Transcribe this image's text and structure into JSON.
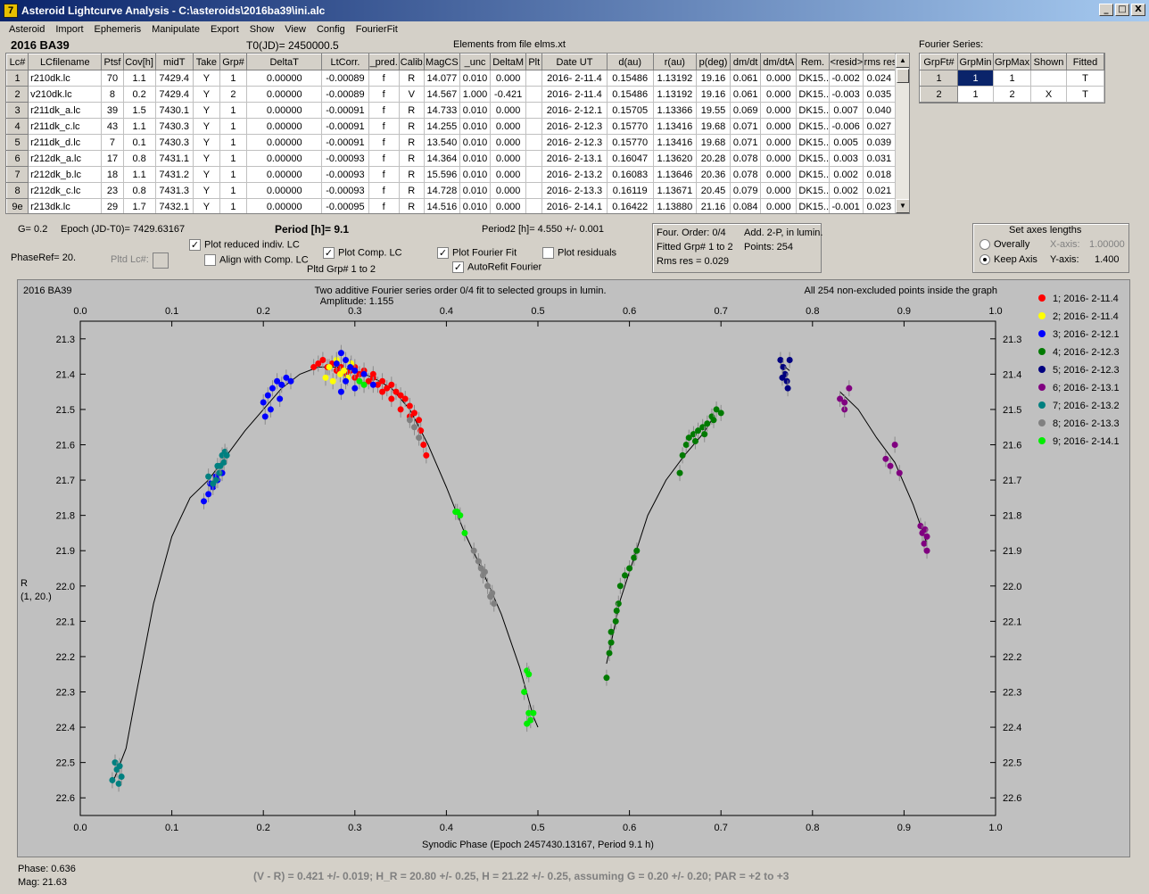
{
  "window": {
    "title": "Asteroid Lightcurve Analysis - C:\\asteroids\\2016ba39\\ini.alc",
    "app_icon": "7",
    "min": "_",
    "max": "□",
    "close": "X"
  },
  "menu": [
    "Asteroid",
    "Import",
    "Ephemeris",
    "Manipulate",
    "Export",
    "Show",
    "View",
    "Config",
    "FourierFit"
  ],
  "header": {
    "object": "2016 BA39",
    "t0": "T0(JD)= 2450000.5",
    "elements": "Elements from file elms.xt",
    "fourier_label": "Fourier Series:"
  },
  "lc_table": {
    "columns": [
      "Lc#",
      "LCfilename",
      "Ptsf",
      "Cov[h]",
      "midT",
      "Take",
      "Grp#",
      "DeltaT",
      "LtCorr.",
      "_pred.",
      "Calib.",
      "MagCS",
      "_unc",
      "DeltaM",
      "Plt",
      "Date UT",
      "d(au)",
      "r(au)",
      "p(deg)",
      "dm/dt",
      "dm/dtA",
      "Rem.",
      "<resid>",
      "rms res"
    ],
    "rows": [
      [
        "1",
        "r210dk.lc",
        "70",
        "1.1",
        "7429.4",
        "Y",
        "1",
        "0.00000",
        "-0.00089",
        "f",
        "R",
        "14.077",
        "0.010",
        "0.000",
        "",
        "2016- 2-11.4",
        "0.15486",
        "1.13192",
        "19.16",
        "0.061",
        "0.000",
        "DK15...",
        "-0.002",
        "0.024"
      ],
      [
        "2",
        "v210dk.lc",
        "8",
        "0.2",
        "7429.4",
        "Y",
        "2",
        "0.00000",
        "-0.00089",
        "f",
        "V",
        "14.567",
        "1.000",
        "-0.421",
        "",
        "2016- 2-11.4",
        "0.15486",
        "1.13192",
        "19.16",
        "0.061",
        "0.000",
        "DK15...",
        "-0.003",
        "0.035"
      ],
      [
        "3",
        "r211dk_a.lc",
        "39",
        "1.5",
        "7430.1",
        "Y",
        "1",
        "0.00000",
        "-0.00091",
        "f",
        "R",
        "14.733",
        "0.010",
        "0.000",
        "",
        "2016- 2-12.1",
        "0.15705",
        "1.13366",
        "19.55",
        "0.069",
        "0.000",
        "DK15...",
        "0.007",
        "0.040"
      ],
      [
        "4",
        "r211dk_c.lc",
        "43",
        "1.1",
        "7430.3",
        "Y",
        "1",
        "0.00000",
        "-0.00091",
        "f",
        "R",
        "14.255",
        "0.010",
        "0.000",
        "",
        "2016- 2-12.3",
        "0.15770",
        "1.13416",
        "19.68",
        "0.071",
        "0.000",
        "DK15...",
        "-0.006",
        "0.027"
      ],
      [
        "5",
        "r211dk_d.lc",
        "7",
        "0.1",
        "7430.3",
        "Y",
        "1",
        "0.00000",
        "-0.00091",
        "f",
        "R",
        "13.540",
        "0.010",
        "0.000",
        "",
        "2016- 2-12.3",
        "0.15770",
        "1.13416",
        "19.68",
        "0.071",
        "0.000",
        "DK15...",
        "0.005",
        "0.039"
      ],
      [
        "6",
        "r212dk_a.lc",
        "17",
        "0.8",
        "7431.1",
        "Y",
        "1",
        "0.00000",
        "-0.00093",
        "f",
        "R",
        "14.364",
        "0.010",
        "0.000",
        "",
        "2016- 2-13.1",
        "0.16047",
        "1.13620",
        "20.28",
        "0.078",
        "0.000",
        "DK15...",
        "0.003",
        "0.031"
      ],
      [
        "7",
        "r212dk_b.lc",
        "18",
        "1.1",
        "7431.2",
        "Y",
        "1",
        "0.00000",
        "-0.00093",
        "f",
        "R",
        "15.596",
        "0.010",
        "0.000",
        "",
        "2016- 2-13.2",
        "0.16083",
        "1.13646",
        "20.36",
        "0.078",
        "0.000",
        "DK15...",
        "0.002",
        "0.018"
      ],
      [
        "8",
        "r212dk_c.lc",
        "23",
        "0.8",
        "7431.3",
        "Y",
        "1",
        "0.00000",
        "-0.00093",
        "f",
        "R",
        "14.728",
        "0.010",
        "0.000",
        "",
        "2016- 2-13.3",
        "0.16119",
        "1.13671",
        "20.45",
        "0.079",
        "0.000",
        "DK15...",
        "0.002",
        "0.021"
      ],
      [
        "9e",
        "r213dk.lc",
        "29",
        "1.7",
        "7432.1",
        "Y",
        "1",
        "0.00000",
        "-0.00095",
        "f",
        "R",
        "14.516",
        "0.010",
        "0.000",
        "",
        "2016- 2-14.1",
        "0.16422",
        "1.13880",
        "21.16",
        "0.084",
        "0.000",
        "DK15...",
        "-0.001",
        "0.023"
      ]
    ]
  },
  "fourier_table": {
    "columns": [
      "GrpFt#",
      "GrpMin",
      "GrpMax",
      "Shown",
      "Fitted"
    ],
    "rows": [
      [
        "1",
        "1",
        "1",
        "",
        "T"
      ],
      [
        "2",
        "1",
        "2",
        "X",
        "T"
      ]
    ]
  },
  "controls": {
    "g": "G= 0.2",
    "epoch": "Epoch (JD-T0)= 7429.63167",
    "period": "Period [h]= 9.1",
    "period2": "Period2 [h]= 4.550 +/- 0.001",
    "phaseref": "PhaseRef= 20.",
    "pltd_lc": "Pltd Lc#:",
    "plot_reduced": "Plot reduced indiv. LC",
    "align_comp": "Align with Comp. LC",
    "plot_comp": "Plot Comp. LC",
    "pltd_grp": "Pltd Grp#  1   to   2",
    "plot_fourier": "Plot Fourier Fit",
    "autorefit": "AutoRefit Fourier",
    "plot_residuals": "Plot residuals",
    "check_mark": "✓"
  },
  "fit_info": {
    "line1a": "Four. Order:  0/4",
    "line1b": "Add. 2-P, in lumin.",
    "line2a": "Fitted Grp# 1 to 2",
    "line2b": "Points: 254",
    "line3a": "Rms res      = 0.029"
  },
  "axes_box": {
    "title": "Set axes lengths",
    "overally": "Overally",
    "keep_axis": "Keep Axis",
    "xaxis_label": "X-axis:",
    "xaxis_value": "1.00000",
    "yaxis_label": "Y-axis:",
    "yaxis_value": "1.400"
  },
  "footer": {
    "phase": "Phase:  0.636",
    "mag": "Mag:     21.63",
    "summary": "(V - R) = 0.421 +/- 0.019; H_R = 20.80 +/- 0.25, H = 21.22 +/- 0.25, assuming G = 0.20 +/- 0.20; PAR = +2 to +3"
  },
  "chart_data": {
    "type": "scatter",
    "title": "Two additive Fourier series order 0/4 fit to selected groups in lumin.",
    "subtitle": "Amplitude: 1.155",
    "corner_left": "2016 BA39",
    "corner_right": "All 254 non-excluded points inside the graph",
    "xlabel": "Synodic Phase (Epoch 2457430.13167, Period 9.1 h)",
    "ylabel": "R",
    "ylabel2": "(1, 20.)",
    "xlim": [
      0,
      1
    ],
    "ylim": [
      22.65,
      21.25
    ],
    "x_ticks": [
      "0.0",
      "0.1",
      "0.2",
      "0.3",
      "0.4",
      "0.5",
      "0.6",
      "0.7",
      "0.8",
      "0.9",
      "1.0"
    ],
    "y_ticks": [
      "21.3",
      "21.4",
      "21.5",
      "21.6",
      "21.7",
      "21.8",
      "21.9",
      "22.0",
      "22.1",
      "22.2",
      "22.3",
      "22.4",
      "22.5",
      "22.6"
    ],
    "series": [
      {
        "name": "1; 2016- 2-11.4",
        "color": "#ff0000",
        "points": [
          [
            0.255,
            21.38
          ],
          [
            0.26,
            21.37
          ],
          [
            0.265,
            21.36
          ],
          [
            0.27,
            21.38
          ],
          [
            0.275,
            21.37
          ],
          [
            0.28,
            21.39
          ],
          [
            0.285,
            21.38
          ],
          [
            0.29,
            21.4
          ],
          [
            0.295,
            21.39
          ],
          [
            0.3,
            21.41
          ],
          [
            0.305,
            21.4
          ],
          [
            0.31,
            21.39
          ],
          [
            0.315,
            21.42
          ],
          [
            0.32,
            21.41
          ],
          [
            0.325,
            21.43
          ],
          [
            0.33,
            21.42
          ],
          [
            0.335,
            21.44
          ],
          [
            0.34,
            21.43
          ],
          [
            0.345,
            21.45
          ],
          [
            0.35,
            21.46
          ],
          [
            0.355,
            21.47
          ],
          [
            0.36,
            21.49
          ],
          [
            0.365,
            21.51
          ],
          [
            0.37,
            21.53
          ],
          [
            0.372,
            21.56
          ],
          [
            0.375,
            21.6
          ],
          [
            0.378,
            21.63
          ],
          [
            0.36,
            21.52
          ],
          [
            0.35,
            21.5
          ],
          [
            0.34,
            21.47
          ],
          [
            0.33,
            21.45
          ],
          [
            0.32,
            21.4
          ],
          [
            0.31,
            21.43
          ],
          [
            0.3,
            21.38
          ]
        ]
      },
      {
        "name": "2; 2016- 2-11.4",
        "color": "#ffff00",
        "points": [
          [
            0.268,
            21.41
          ],
          [
            0.272,
            21.38
          ],
          [
            0.276,
            21.42
          ],
          [
            0.28,
            21.36
          ],
          [
            0.284,
            21.4
          ],
          [
            0.288,
            21.39
          ],
          [
            0.292,
            21.41
          ],
          [
            0.296,
            21.37
          ]
        ]
      },
      {
        "name": "3; 2016- 2-12.1",
        "color": "#0000ff",
        "points": [
          [
            0.14,
            21.74
          ],
          [
            0.145,
            21.72
          ],
          [
            0.15,
            21.7
          ],
          [
            0.155,
            21.68
          ],
          [
            0.135,
            21.76
          ],
          [
            0.142,
            21.71
          ],
          [
            0.148,
            21.69
          ],
          [
            0.2,
            21.48
          ],
          [
            0.205,
            21.46
          ],
          [
            0.21,
            21.44
          ],
          [
            0.215,
            21.42
          ],
          [
            0.22,
            21.43
          ],
          [
            0.225,
            21.41
          ],
          [
            0.23,
            21.42
          ],
          [
            0.218,
            21.47
          ],
          [
            0.208,
            21.5
          ],
          [
            0.202,
            21.52
          ],
          [
            0.28,
            21.37
          ],
          [
            0.285,
            21.34
          ],
          [
            0.29,
            21.36
          ],
          [
            0.295,
            21.38
          ],
          [
            0.3,
            21.39
          ],
          [
            0.31,
            21.4
          ],
          [
            0.29,
            21.42
          ],
          [
            0.285,
            21.45
          ],
          [
            0.3,
            21.44
          ],
          [
            0.32,
            21.43
          ]
        ]
      },
      {
        "name": "4; 2016- 2-12.3",
        "color": "#007a00",
        "points": [
          [
            0.575,
            22.26
          ],
          [
            0.578,
            22.19
          ],
          [
            0.58,
            22.16
          ],
          [
            0.585,
            22.1
          ],
          [
            0.588,
            22.05
          ],
          [
            0.59,
            22.0
          ],
          [
            0.595,
            21.97
          ],
          [
            0.6,
            21.95
          ],
          [
            0.605,
            21.92
          ],
          [
            0.608,
            21.9
          ],
          [
            0.58,
            22.13
          ],
          [
            0.586,
            22.07
          ],
          [
            0.655,
            21.68
          ],
          [
            0.658,
            21.63
          ],
          [
            0.662,
            21.6
          ],
          [
            0.665,
            21.58
          ],
          [
            0.67,
            21.57
          ],
          [
            0.675,
            21.56
          ],
          [
            0.68,
            21.55
          ],
          [
            0.685,
            21.54
          ],
          [
            0.69,
            21.52
          ],
          [
            0.695,
            21.5
          ],
          [
            0.7,
            21.51
          ],
          [
            0.672,
            21.59
          ],
          [
            0.682,
            21.57
          ],
          [
            0.692,
            21.53
          ]
        ]
      },
      {
        "name": "5; 2016- 2-12.3",
        "color": "#000080",
        "points": [
          [
            0.765,
            21.36
          ],
          [
            0.768,
            21.38
          ],
          [
            0.77,
            21.4
          ],
          [
            0.772,
            21.42
          ],
          [
            0.775,
            21.36
          ],
          [
            0.773,
            21.44
          ],
          [
            0.767,
            21.41
          ]
        ]
      },
      {
        "name": "6; 2016- 2-13.1",
        "color": "#800080",
        "points": [
          [
            0.83,
            21.47
          ],
          [
            0.835,
            21.5
          ],
          [
            0.84,
            21.44
          ],
          [
            0.835,
            21.48
          ],
          [
            0.88,
            21.64
          ],
          [
            0.885,
            21.66
          ],
          [
            0.89,
            21.6
          ],
          [
            0.895,
            21.68
          ],
          [
            0.918,
            21.83
          ],
          [
            0.92,
            21.85
          ],
          [
            0.922,
            21.88
          ],
          [
            0.925,
            21.9
          ],
          [
            0.923,
            21.84
          ],
          [
            0.925,
            21.86
          ]
        ]
      },
      {
        "name": "7; 2016- 2-13.2",
        "color": "#008080",
        "points": [
          [
            0.035,
            22.55
          ],
          [
            0.038,
            22.5
          ],
          [
            0.04,
            22.52
          ],
          [
            0.042,
            22.56
          ],
          [
            0.045,
            22.54
          ],
          [
            0.043,
            22.51
          ],
          [
            0.15,
            21.66
          ],
          [
            0.155,
            21.63
          ],
          [
            0.158,
            21.62
          ],
          [
            0.152,
            21.68
          ],
          [
            0.148,
            21.7
          ],
          [
            0.145,
            21.71
          ],
          [
            0.157,
            21.65
          ],
          [
            0.16,
            21.63
          ],
          [
            0.153,
            21.66
          ],
          [
            0.14,
            21.69
          ]
        ]
      },
      {
        "name": "8; 2016- 2-13.3",
        "color": "#808080",
        "points": [
          [
            0.36,
            21.53
          ],
          [
            0.365,
            21.55
          ],
          [
            0.37,
            21.58
          ],
          [
            0.43,
            21.9
          ],
          [
            0.435,
            21.93
          ],
          [
            0.44,
            21.97
          ],
          [
            0.445,
            22.0
          ],
          [
            0.45,
            22.02
          ],
          [
            0.452,
            22.05
          ],
          [
            0.448,
            22.03
          ],
          [
            0.442,
            21.96
          ],
          [
            0.438,
            21.95
          ]
        ]
      },
      {
        "name": "9; 2016- 2-14.1",
        "color": "#00ee00",
        "points": [
          [
            0.305,
            21.42
          ],
          [
            0.31,
            21.43
          ],
          [
            0.41,
            21.79
          ],
          [
            0.415,
            21.8
          ],
          [
            0.42,
            21.85
          ],
          [
            0.412,
            21.79
          ],
          [
            0.488,
            22.24
          ],
          [
            0.49,
            22.25
          ],
          [
            0.485,
            22.3
          ],
          [
            0.49,
            22.36
          ],
          [
            0.492,
            22.38
          ],
          [
            0.495,
            22.36
          ],
          [
            0.488,
            22.39
          ]
        ]
      }
    ],
    "curve": [
      [
        0.035,
        22.56
      ],
      [
        0.05,
        22.46
      ],
      [
        0.06,
        22.32
      ],
      [
        0.08,
        22.05
      ],
      [
        0.1,
        21.86
      ],
      [
        0.12,
        21.75
      ],
      [
        0.14,
        21.7
      ],
      [
        0.16,
        21.63
      ],
      [
        0.18,
        21.56
      ],
      [
        0.2,
        21.5
      ],
      [
        0.22,
        21.44
      ],
      [
        0.24,
        21.4
      ],
      [
        0.26,
        21.38
      ],
      [
        0.28,
        21.38
      ],
      [
        0.3,
        21.39
      ],
      [
        0.32,
        21.41
      ],
      [
        0.34,
        21.44
      ],
      [
        0.36,
        21.5
      ],
      [
        0.38,
        21.6
      ],
      [
        0.4,
        21.72
      ],
      [
        0.42,
        21.85
      ],
      [
        0.44,
        21.96
      ],
      [
        0.46,
        22.08
      ],
      [
        0.48,
        22.23
      ],
      [
        0.495,
        22.37
      ],
      [
        0.5,
        22.4
      ],
      [
        0.575,
        22.22
      ],
      [
        0.58,
        22.16
      ],
      [
        0.59,
        22.04
      ],
      [
        0.6,
        21.96
      ],
      [
        0.62,
        21.8
      ],
      [
        0.64,
        21.7
      ],
      [
        0.66,
        21.63
      ],
      [
        0.68,
        21.57
      ],
      [
        0.69,
        21.53
      ],
      [
        0.765,
        21.37
      ],
      [
        0.775,
        21.39
      ],
      [
        0.83,
        21.45
      ],
      [
        0.85,
        21.5
      ],
      [
        0.87,
        21.58
      ],
      [
        0.89,
        21.65
      ],
      [
        0.91,
        21.77
      ],
      [
        0.925,
        21.88
      ]
    ]
  }
}
